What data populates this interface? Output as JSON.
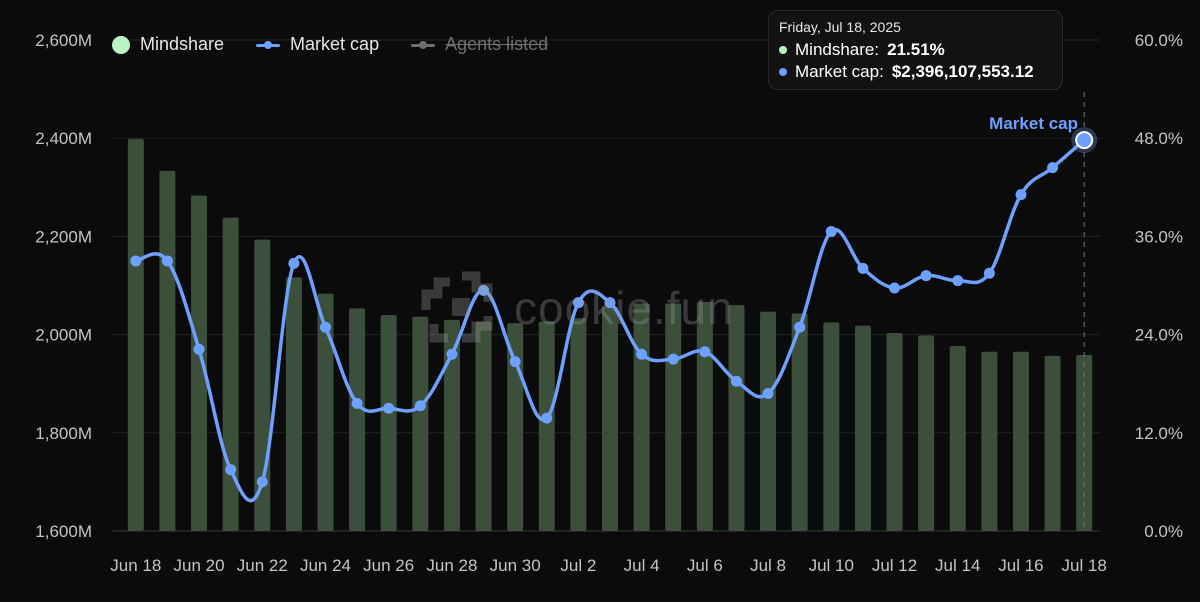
{
  "legend": {
    "mindshare": {
      "label": "Mindshare",
      "color": "#b9f5c2"
    },
    "market_cap": {
      "label": "Market cap",
      "color": "#6ea0ff"
    },
    "agents_listed": {
      "label": "Agents listed",
      "color": "#7a7a7a",
      "state": "hidden"
    }
  },
  "tooltip": {
    "date": "Friday, Jul 18, 2025",
    "mindshare_label": "Mindshare:",
    "mindshare_value": "21.51%",
    "market_cap_label": "Market cap:",
    "market_cap_value": "$2,396,107,553.12"
  },
  "series_callout": "Market cap",
  "watermark": "cookie.fun",
  "chart_data": {
    "type": "bar+line",
    "categories": [
      "Jun 18",
      "Jun 19",
      "Jun 20",
      "Jun 21",
      "Jun 22",
      "Jun 23",
      "Jun 24",
      "Jun 25",
      "Jun 26",
      "Jun 27",
      "Jun 28",
      "Jun 29",
      "Jun 30",
      "Jul 1",
      "Jul 2",
      "Jul 3",
      "Jul 4",
      "Jul 5",
      "Jul 6",
      "Jul 7",
      "Jul 8",
      "Jul 9",
      "Jul 10",
      "Jul 11",
      "Jul 12",
      "Jul 13",
      "Jul 14",
      "Jul 15",
      "Jul 16",
      "Jul 17",
      "Jul 18"
    ],
    "x_tick_labels": [
      "Jun 18",
      "Jun 20",
      "Jun 22",
      "Jun 24",
      "Jun 26",
      "Jun 28",
      "Jun 30",
      "Jul 2",
      "Jul 4",
      "Jul 6",
      "Jul 8",
      "Jul 10",
      "Jul 12",
      "Jul 14",
      "Jul 16",
      "Jul 18"
    ],
    "left_axis": {
      "ticks": [
        "1,600M",
        "1,800M",
        "2,000M",
        "2,200M",
        "2,400M",
        "2,600M"
      ],
      "ylim": [
        1600,
        2600
      ],
      "unit": "M"
    },
    "right_axis": {
      "ticks": [
        "0.0%",
        "12.0%",
        "24.0%",
        "36.0%",
        "48.0%",
        "60.0%"
      ],
      "ylim": [
        0,
        60
      ]
    },
    "grid": true,
    "legend_position": "top-left",
    "series": [
      {
        "name": "Mindshare",
        "type": "bar",
        "axis": "right",
        "color": "#3b4f3b",
        "values": [
          47.9,
          44.0,
          41.0,
          38.3,
          35.6,
          31.0,
          29.0,
          27.2,
          26.4,
          26.2,
          25.8,
          25.6,
          25.4,
          25.6,
          26.0,
          27.4,
          27.8,
          27.8,
          28.0,
          27.6,
          26.8,
          26.6,
          25.5,
          25.1,
          24.2,
          23.9,
          22.6,
          21.9,
          21.9,
          21.4,
          21.51
        ]
      },
      {
        "name": "Market cap",
        "type": "line",
        "axis": "left",
        "color": "#6ea0ff",
        "values": [
          2150,
          2150,
          1970,
          1725,
          1700,
          2145,
          2015,
          1860,
          1850,
          1855,
          1960,
          2090,
          1945,
          1830,
          2065,
          2065,
          1960,
          1950,
          1965,
          1905,
          1880,
          2015,
          2210,
          2135,
          2095,
          2120,
          2110,
          2125,
          2285,
          2340,
          2396.1
        ]
      }
    ]
  }
}
